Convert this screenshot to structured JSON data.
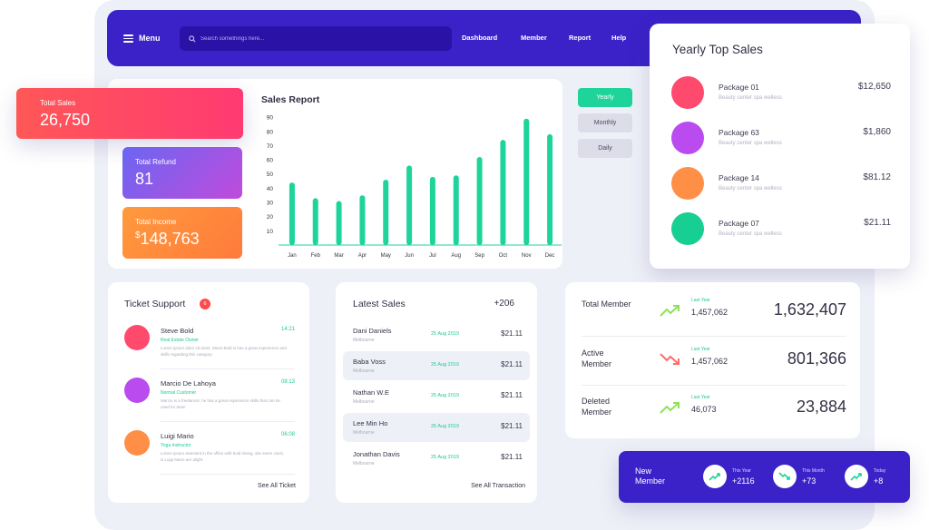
{
  "header": {
    "menu_label": "Menu",
    "search_placeholder": "Search somethings here...",
    "nav": [
      "Dashboard",
      "Member",
      "Report",
      "Help"
    ]
  },
  "stats": {
    "total_sales": {
      "label": "Total Sales",
      "value": "26,750"
    },
    "total_refund": {
      "label": "Total Refund",
      "value": "81"
    },
    "total_income": {
      "label": "Total Income",
      "currency": "$",
      "value": "148,763"
    }
  },
  "sales_report": {
    "title": "Sales Report",
    "periods": [
      "Yearly",
      "Monthly",
      "Daily"
    ],
    "active_period": "Yearly"
  },
  "chart_data": {
    "type": "bar",
    "title": "Sales Report",
    "categories": [
      "Jan",
      "Feb",
      "Mar",
      "Apr",
      "May",
      "Jun",
      "Jul",
      "Aug",
      "Sep",
      "Oct",
      "Nov",
      "Dec"
    ],
    "values": [
      44,
      33,
      31,
      35,
      46,
      56,
      48,
      49,
      62,
      74,
      89,
      78
    ],
    "yticks": [
      10,
      20,
      30,
      40,
      50,
      60,
      70,
      80,
      90
    ],
    "ylim": [
      0,
      92
    ],
    "color": "#1ed49a",
    "grid": false
  },
  "top_sales": {
    "title": "Yearly Top Sales",
    "items": [
      {
        "name": "Package 01",
        "sub": "Beauty center spa welless",
        "price": "$12,650",
        "color": "#ff4a6e"
      },
      {
        "name": "Package 63",
        "sub": "Beauty center spa welless",
        "price": "$1,860",
        "color": "#b94bef"
      },
      {
        "name": "Package 14",
        "sub": "Beauty center spa welless",
        "price": "$81.12",
        "color": "#ff8f47"
      },
      {
        "name": "Package 07",
        "sub": "Beauty center spa welless",
        "price": "$21.11",
        "color": "#17cf92"
      }
    ]
  },
  "ticket_support": {
    "title": "Ticket Support",
    "badge": "6",
    "items": [
      {
        "name": "Steve Bold",
        "role": "Real Estate Owner",
        "time": "14:21",
        "desc": "Lorem ipsum dolor sit amet, Steve Bold is has a great experience and skills regarding this category",
        "color": "#ff4a6e"
      },
      {
        "name": "Marcio De Lahoya",
        "role": "Normal Customer",
        "time": "08:13",
        "desc": "Marcio is a freelancer, he has a great experience skills that can be used for team",
        "color": "#b94bef"
      },
      {
        "name": "Luigi Mario",
        "role": "Yoga Instructor",
        "time": "06:08",
        "desc": "Lorem ipsum assistant in the office with bold timing, site seem clock, is Luigi Mario are alight",
        "color": "#ff8f47"
      }
    ],
    "see_all": "See All Ticket"
  },
  "latest_sales": {
    "title": "Latest Sales",
    "count": "+206",
    "items": [
      {
        "name": "Dani Daniels",
        "loc": "Melbourne",
        "date": "25 Aug 2019",
        "amount": "$21.11"
      },
      {
        "name": "Baba Voss",
        "loc": "Melbourne",
        "date": "25 Aug 2019",
        "amount": "$21.11"
      },
      {
        "name": "Nathan W.E",
        "loc": "Melbourne",
        "date": "25 Aug 2019",
        "amount": "$21.11"
      },
      {
        "name": "Lee Min Ho",
        "loc": "Melbourne",
        "date": "25 Aug 2019",
        "amount": "$21.11"
      },
      {
        "name": "Jonathan Davis",
        "loc": "Melbourne",
        "date": "25 Aug 2019",
        "amount": "$21.11"
      }
    ],
    "see_all": "See All Transaction"
  },
  "members": [
    {
      "label": "Total Member",
      "trend": "up",
      "ly_label": "Last Year",
      "ly_value": "1,457,062",
      "value": "1,632,407"
    },
    {
      "label": "Active Member",
      "trend": "down",
      "ly_label": "Last Year",
      "ly_value": "1,457,062",
      "value": "801,366"
    },
    {
      "label": "Deleted Member",
      "trend": "up",
      "ly_label": "Last Year",
      "ly_value": "46,073",
      "value": "23,884"
    }
  ],
  "new_member": {
    "title": "New Member",
    "items": [
      {
        "label": "This Year",
        "value": "+2116",
        "trend": "up"
      },
      {
        "label": "This Month",
        "value": "+73",
        "trend": "down"
      },
      {
        "label": "Today",
        "value": "+8",
        "trend": "up"
      }
    ]
  },
  "colors": {
    "brand": "#3b22c8",
    "accent_green": "#1ed49a",
    "down_red": "#ff6b6b"
  }
}
